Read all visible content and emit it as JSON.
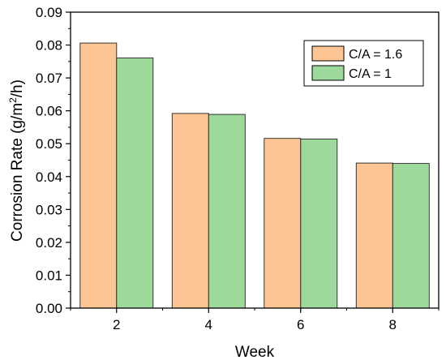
{
  "chart_data": {
    "type": "bar",
    "categories": [
      "2",
      "4",
      "6",
      "8"
    ],
    "series": [
      {
        "name": "C/A = 1.6",
        "values": [
          0.0806,
          0.0592,
          0.0516,
          0.0441
        ],
        "color": "#FDC594"
      },
      {
        "name": "C/A = 1",
        "values": [
          0.0761,
          0.0589,
          0.0514,
          0.044
        ],
        "color": "#9ED99C"
      }
    ],
    "title": "",
    "xlabel": "Week",
    "ylabel": "Corrosion Rate (g/m²/h)",
    "ylim": [
      0,
      0.09
    ],
    "yticks": [
      "0.00",
      "0.01",
      "0.02",
      "0.03",
      "0.04",
      "0.05",
      "0.06",
      "0.07",
      "0.08",
      "0.09"
    ],
    "grid": false,
    "legend_position": "top-right"
  }
}
